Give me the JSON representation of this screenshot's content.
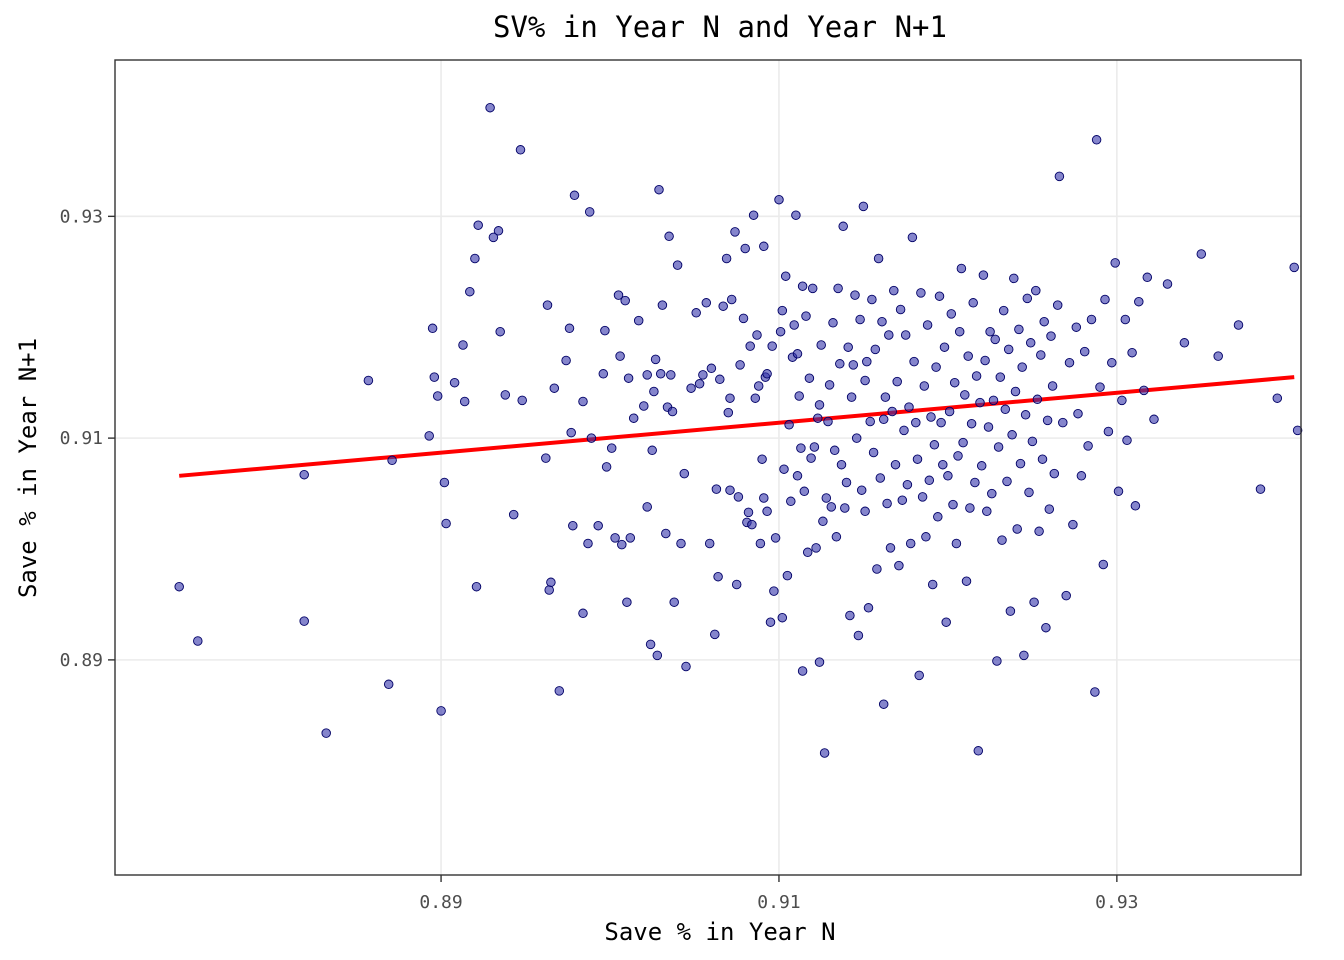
{
  "chart_data": {
    "type": "scatter",
    "title": "SV% in Year N and Year N+1",
    "xlabel": "Save % in Year N",
    "ylabel": "Save % in Year N+1",
    "xlim": [
      0.8707,
      0.9409
    ],
    "ylim": [
      0.8706,
      0.9441
    ],
    "x_ticks": [
      0.89,
      0.91,
      0.93
    ],
    "y_ticks": [
      0.89,
      0.91,
      0.93
    ],
    "x_tick_labels": [
      "0.89",
      "0.91",
      "0.93"
    ],
    "y_tick_labels": [
      "0.89",
      "0.91",
      "0.93"
    ],
    "grid": true,
    "point_fill": "#3333aa",
    "point_fill_opacity": 0.6,
    "trend_color": "#ff0000",
    "trend_line": {
      "x": [
        0.8745,
        0.9405
      ],
      "y": [
        0.9066,
        0.9155
      ]
    },
    "points": [
      [
        0.8745,
        0.8966
      ],
      [
        0.8756,
        0.8917
      ],
      [
        0.8819,
        0.8935
      ],
      [
        0.8819,
        0.9067
      ],
      [
        0.8832,
        0.8834
      ],
      [
        0.8857,
        0.9152
      ],
      [
        0.8869,
        0.8878
      ],
      [
        0.8871,
        0.908
      ],
      [
        0.8893,
        0.9102
      ],
      [
        0.8895,
        0.9199
      ],
      [
        0.8896,
        0.9155
      ],
      [
        0.8898,
        0.9138
      ],
      [
        0.89,
        0.8854
      ],
      [
        0.8902,
        0.906
      ],
      [
        0.8903,
        0.9023
      ],
      [
        0.8908,
        0.915
      ],
      [
        0.8913,
        0.9184
      ],
      [
        0.8914,
        0.9133
      ],
      [
        0.8917,
        0.9232
      ],
      [
        0.892,
        0.9262
      ],
      [
        0.8921,
        0.8966
      ],
      [
        0.8922,
        0.9292
      ],
      [
        0.8929,
        0.9398
      ],
      [
        0.8931,
        0.9281
      ],
      [
        0.8934,
        0.9287
      ],
      [
        0.8935,
        0.9196
      ],
      [
        0.8938,
        0.9139
      ],
      [
        0.8943,
        0.9031
      ],
      [
        0.8947,
        0.936
      ],
      [
        0.8948,
        0.9134
      ],
      [
        0.8962,
        0.9082
      ],
      [
        0.8963,
        0.922
      ],
      [
        0.8964,
        0.8963
      ],
      [
        0.8965,
        0.897
      ],
      [
        0.8967,
        0.9145
      ],
      [
        0.897,
        0.8872
      ],
      [
        0.8974,
        0.917
      ],
      [
        0.8976,
        0.9199
      ],
      [
        0.8977,
        0.9105
      ],
      [
        0.8978,
        0.9021
      ],
      [
        0.8979,
        0.9319
      ],
      [
        0.8984,
        0.9133
      ],
      [
        0.8984,
        0.8942
      ],
      [
        0.8987,
        0.9005
      ],
      [
        0.8988,
        0.9304
      ],
      [
        0.8989,
        0.91
      ],
      [
        0.8993,
        0.9021
      ],
      [
        0.8996,
        0.9158
      ],
      [
        0.8997,
        0.9197
      ],
      [
        0.8998,
        0.9074
      ],
      [
        0.9001,
        0.9091
      ],
      [
        0.9003,
        0.901
      ],
      [
        0.9005,
        0.9229
      ],
      [
        0.9006,
        0.9174
      ],
      [
        0.9007,
        0.9004
      ],
      [
        0.9009,
        0.9224
      ],
      [
        0.901,
        0.8952
      ],
      [
        0.9011,
        0.9154
      ],
      [
        0.9012,
        0.901
      ],
      [
        0.9014,
        0.9118
      ],
      [
        0.9017,
        0.9206
      ],
      [
        0.902,
        0.9129
      ],
      [
        0.9022,
        0.9157
      ],
      [
        0.9022,
        0.9038
      ],
      [
        0.9024,
        0.8914
      ],
      [
        0.9025,
        0.9089
      ],
      [
        0.9026,
        0.9142
      ],
      [
        0.9027,
        0.9171
      ],
      [
        0.9028,
        0.8904
      ],
      [
        0.9029,
        0.9324
      ],
      [
        0.903,
        0.9158
      ],
      [
        0.9031,
        0.922
      ],
      [
        0.9033,
        0.9014
      ],
      [
        0.9034,
        0.9128
      ],
      [
        0.9035,
        0.9282
      ],
      [
        0.9036,
        0.9157
      ],
      [
        0.9037,
        0.9124
      ],
      [
        0.9038,
        0.8952
      ],
      [
        0.904,
        0.9256
      ],
      [
        0.9042,
        0.9005
      ],
      [
        0.9044,
        0.9068
      ],
      [
        0.9045,
        0.8894
      ],
      [
        0.9048,
        0.9145
      ],
      [
        0.9051,
        0.9213
      ],
      [
        0.9053,
        0.9149
      ],
      [
        0.9055,
        0.9157
      ],
      [
        0.9057,
        0.9222
      ],
      [
        0.9059,
        0.9005
      ],
      [
        0.906,
        0.9163
      ],
      [
        0.9062,
        0.8923
      ],
      [
        0.9063,
        0.9054
      ],
      [
        0.9064,
        0.8975
      ],
      [
        0.9065,
        0.9153
      ],
      [
        0.9067,
        0.9219
      ],
      [
        0.9069,
        0.9262
      ],
      [
        0.907,
        0.9123
      ],
      [
        0.9071,
        0.9053
      ],
      [
        0.9071,
        0.9136
      ],
      [
        0.9072,
        0.9225
      ],
      [
        0.9074,
        0.9286
      ],
      [
        0.9075,
        0.8968
      ],
      [
        0.9076,
        0.9047
      ],
      [
        0.9077,
        0.9166
      ],
      [
        0.9079,
        0.9208
      ],
      [
        0.908,
        0.9271
      ],
      [
        0.9081,
        0.9024
      ],
      [
        0.9082,
        0.9033
      ],
      [
        0.9083,
        0.9183
      ],
      [
        0.9084,
        0.9022
      ],
      [
        0.9085,
        0.9301
      ],
      [
        0.9086,
        0.9136
      ],
      [
        0.9087,
        0.9193
      ],
      [
        0.9088,
        0.9147
      ],
      [
        0.9089,
        0.9005
      ],
      [
        0.909,
        0.9081
      ],
      [
        0.9091,
        0.9046
      ],
      [
        0.9091,
        0.9273
      ],
      [
        0.9092,
        0.9155
      ],
      [
        0.9093,
        0.9034
      ],
      [
        0.9093,
        0.9158
      ],
      [
        0.9095,
        0.8934
      ],
      [
        0.9096,
        0.9183
      ],
      [
        0.9097,
        0.8962
      ],
      [
        0.9098,
        0.901
      ],
      [
        0.91,
        0.9315
      ],
      [
        0.9101,
        0.9196
      ],
      [
        0.9102,
        0.8938
      ],
      [
        0.9102,
        0.9215
      ],
      [
        0.9103,
        0.9072
      ],
      [
        0.9104,
        0.9246
      ],
      [
        0.9105,
        0.8976
      ],
      [
        0.9106,
        0.9112
      ],
      [
        0.9107,
        0.9043
      ],
      [
        0.9108,
        0.9173
      ],
      [
        0.9109,
        0.9202
      ],
      [
        0.911,
        0.9301
      ],
      [
        0.9111,
        0.9066
      ],
      [
        0.9111,
        0.9176
      ],
      [
        0.9112,
        0.9138
      ],
      [
        0.9113,
        0.9091
      ],
      [
        0.9114,
        0.9237
      ],
      [
        0.9114,
        0.889
      ],
      [
        0.9115,
        0.9052
      ],
      [
        0.9116,
        0.921
      ],
      [
        0.9117,
        0.8997
      ],
      [
        0.9118,
        0.9154
      ],
      [
        0.9119,
        0.9082
      ],
      [
        0.912,
        0.9235
      ],
      [
        0.9121,
        0.9092
      ],
      [
        0.9122,
        0.9001
      ],
      [
        0.9123,
        0.9118
      ],
      [
        0.9124,
        0.913
      ],
      [
        0.9124,
        0.8898
      ],
      [
        0.9125,
        0.9184
      ],
      [
        0.9126,
        0.9025
      ],
      [
        0.9127,
        0.8816
      ],
      [
        0.9128,
        0.9046
      ],
      [
        0.9129,
        0.9115
      ],
      [
        0.913,
        0.9148
      ],
      [
        0.9131,
        0.9038
      ],
      [
        0.9132,
        0.9204
      ],
      [
        0.9133,
        0.9089
      ],
      [
        0.9134,
        0.9011
      ],
      [
        0.9135,
        0.9235
      ],
      [
        0.9136,
        0.9167
      ],
      [
        0.9137,
        0.9076
      ],
      [
        0.9138,
        0.9291
      ],
      [
        0.9139,
        0.9037
      ],
      [
        0.914,
        0.906
      ],
      [
        0.9141,
        0.9182
      ],
      [
        0.9142,
        0.894
      ],
      [
        0.9143,
        0.9137
      ],
      [
        0.9144,
        0.9166
      ],
      [
        0.9145,
        0.9229
      ],
      [
        0.9146,
        0.91
      ],
      [
        0.9147,
        0.8922
      ],
      [
        0.9148,
        0.9207
      ],
      [
        0.9149,
        0.9053
      ],
      [
        0.915,
        0.9309
      ],
      [
        0.9151,
        0.9152
      ],
      [
        0.9151,
        0.9034
      ],
      [
        0.9152,
        0.9169
      ],
      [
        0.9153,
        0.8947
      ],
      [
        0.9154,
        0.9115
      ],
      [
        0.9155,
        0.9225
      ],
      [
        0.9156,
        0.9087
      ],
      [
        0.9157,
        0.918
      ],
      [
        0.9158,
        0.8982
      ],
      [
        0.9159,
        0.9262
      ],
      [
        0.916,
        0.9064
      ],
      [
        0.9161,
        0.9205
      ],
      [
        0.9162,
        0.9117
      ],
      [
        0.9162,
        0.886
      ],
      [
        0.9163,
        0.9137
      ],
      [
        0.9164,
        0.9041
      ],
      [
        0.9165,
        0.9193
      ],
      [
        0.9166,
        0.9001
      ],
      [
        0.9167,
        0.9124
      ],
      [
        0.9168,
        0.9233
      ],
      [
        0.9169,
        0.9076
      ],
      [
        0.917,
        0.9151
      ],
      [
        0.9171,
        0.8985
      ],
      [
        0.9172,
        0.9216
      ],
      [
        0.9173,
        0.9044
      ],
      [
        0.9174,
        0.9107
      ],
      [
        0.9175,
        0.9193
      ],
      [
        0.9176,
        0.9058
      ],
      [
        0.9177,
        0.9128
      ],
      [
        0.9178,
        0.9005
      ],
      [
        0.9179,
        0.9281
      ],
      [
        0.918,
        0.9169
      ],
      [
        0.9181,
        0.9114
      ],
      [
        0.9182,
        0.9081
      ],
      [
        0.9183,
        0.8886
      ],
      [
        0.9184,
        0.9231
      ],
      [
        0.9185,
        0.9047
      ],
      [
        0.9186,
        0.9147
      ],
      [
        0.9187,
        0.9011
      ],
      [
        0.9188,
        0.9202
      ],
      [
        0.9189,
        0.9062
      ],
      [
        0.919,
        0.9119
      ],
      [
        0.9191,
        0.8968
      ],
      [
        0.9192,
        0.9094
      ],
      [
        0.9193,
        0.9164
      ],
      [
        0.9194,
        0.9029
      ],
      [
        0.9195,
        0.9228
      ],
      [
        0.9196,
        0.9114
      ],
      [
        0.9197,
        0.9076
      ],
      [
        0.9198,
        0.9182
      ],
      [
        0.9199,
        0.8934
      ],
      [
        0.92,
        0.9066
      ],
      [
        0.9201,
        0.9124
      ],
      [
        0.9202,
        0.9212
      ],
      [
        0.9203,
        0.904
      ],
      [
        0.9204,
        0.915
      ],
      [
        0.9205,
        0.9005
      ],
      [
        0.9206,
        0.9084
      ],
      [
        0.9207,
        0.9196
      ],
      [
        0.9208,
        0.9253
      ],
      [
        0.9209,
        0.9096
      ],
      [
        0.921,
        0.9139
      ],
      [
        0.9211,
        0.8971
      ],
      [
        0.9212,
        0.9174
      ],
      [
        0.9213,
        0.9037
      ],
      [
        0.9214,
        0.9113
      ],
      [
        0.9215,
        0.9222
      ],
      [
        0.9216,
        0.906
      ],
      [
        0.9217,
        0.9156
      ],
      [
        0.9218,
        0.8818
      ],
      [
        0.9219,
        0.9132
      ],
      [
        0.922,
        0.9075
      ],
      [
        0.9221,
        0.9247
      ],
      [
        0.9222,
        0.917
      ],
      [
        0.9223,
        0.9034
      ],
      [
        0.9224,
        0.911
      ],
      [
        0.9225,
        0.9196
      ],
      [
        0.9226,
        0.905
      ],
      [
        0.9227,
        0.9134
      ],
      [
        0.9228,
        0.9189
      ],
      [
        0.9229,
        0.8899
      ],
      [
        0.923,
        0.9092
      ],
      [
        0.9231,
        0.9155
      ],
      [
        0.9232,
        0.9008
      ],
      [
        0.9233,
        0.9215
      ],
      [
        0.9234,
        0.9126
      ],
      [
        0.9235,
        0.9061
      ],
      [
        0.9236,
        0.918
      ],
      [
        0.9237,
        0.8944
      ],
      [
        0.9238,
        0.9103
      ],
      [
        0.9239,
        0.9244
      ],
      [
        0.924,
        0.9142
      ],
      [
        0.9241,
        0.9018
      ],
      [
        0.9242,
        0.9198
      ],
      [
        0.9243,
        0.9077
      ],
      [
        0.9244,
        0.9164
      ],
      [
        0.9245,
        0.8904
      ],
      [
        0.9246,
        0.9121
      ],
      [
        0.9247,
        0.9226
      ],
      [
        0.9248,
        0.9051
      ],
      [
        0.9249,
        0.9186
      ],
      [
        0.925,
        0.9097
      ],
      [
        0.9251,
        0.8952
      ],
      [
        0.9252,
        0.9233
      ],
      [
        0.9253,
        0.9135
      ],
      [
        0.9254,
        0.9016
      ],
      [
        0.9255,
        0.9175
      ],
      [
        0.9256,
        0.9081
      ],
      [
        0.9257,
        0.9205
      ],
      [
        0.9258,
        0.8929
      ],
      [
        0.9259,
        0.9116
      ],
      [
        0.926,
        0.9036
      ],
      [
        0.9261,
        0.9192
      ],
      [
        0.9262,
        0.9147
      ],
      [
        0.9263,
        0.9068
      ],
      [
        0.9265,
        0.922
      ],
      [
        0.9266,
        0.9336
      ],
      [
        0.9268,
        0.9114
      ],
      [
        0.927,
        0.8958
      ],
      [
        0.9272,
        0.9168
      ],
      [
        0.9274,
        0.9022
      ],
      [
        0.9276,
        0.92
      ],
      [
        0.9277,
        0.9122
      ],
      [
        0.9279,
        0.9066
      ],
      [
        0.9281,
        0.9178
      ],
      [
        0.9283,
        0.9093
      ],
      [
        0.9285,
        0.9207
      ],
      [
        0.9287,
        0.8871
      ],
      [
        0.9288,
        0.9369
      ],
      [
        0.929,
        0.9146
      ],
      [
        0.9292,
        0.8986
      ],
      [
        0.9293,
        0.9225
      ],
      [
        0.9295,
        0.9106
      ],
      [
        0.9297,
        0.9168
      ],
      [
        0.9299,
        0.9258
      ],
      [
        0.9301,
        0.9052
      ],
      [
        0.9303,
        0.9134
      ],
      [
        0.9305,
        0.9207
      ],
      [
        0.9306,
        0.9098
      ],
      [
        0.9309,
        0.9177
      ],
      [
        0.9311,
        0.9039
      ],
      [
        0.9313,
        0.9223
      ],
      [
        0.9316,
        0.9143
      ],
      [
        0.9318,
        0.9245
      ],
      [
        0.9322,
        0.9117
      ],
      [
        0.933,
        0.9239
      ],
      [
        0.934,
        0.9186
      ],
      [
        0.935,
        0.9266
      ],
      [
        0.936,
        0.9174
      ],
      [
        0.9372,
        0.9202
      ],
      [
        0.9385,
        0.9054
      ],
      [
        0.9395,
        0.9136
      ],
      [
        0.9405,
        0.9254
      ],
      [
        0.9407,
        0.9107
      ]
    ]
  }
}
